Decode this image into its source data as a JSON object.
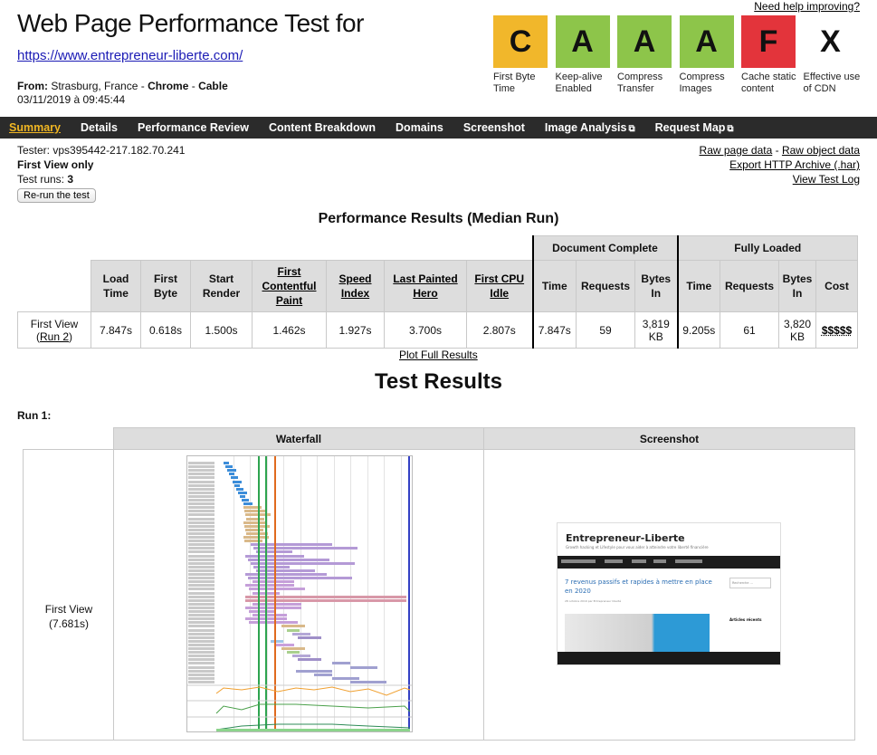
{
  "header": {
    "title": "Web Page Performance Test for",
    "url": "https://www.entrepreneur-liberte.com/",
    "from_label": "From:",
    "from_location": "Strasburg, France",
    "browser": "Chrome",
    "connection": "Cable",
    "sep": " - ",
    "datetime": "03/11/2019 à 09:45:44",
    "help_link": "Need help improving?"
  },
  "grades": [
    {
      "grade": "C",
      "label": "First Byte Time",
      "color": "#f1b72b"
    },
    {
      "grade": "A",
      "label": "Keep-alive Enabled",
      "color": "#8dc54a"
    },
    {
      "grade": "A",
      "label": "Compress Transfer",
      "color": "#8dc54a"
    },
    {
      "grade": "A",
      "label": "Compress Images",
      "color": "#8dc54a"
    },
    {
      "grade": "F",
      "label": "Cache static content",
      "color": "#e3343b"
    },
    {
      "grade": "X",
      "label": "Effective use of CDN",
      "color": "#ffffff"
    }
  ],
  "nav": {
    "summary": "Summary",
    "details": "Details",
    "performance_review": "Performance Review",
    "content_breakdown": "Content Breakdown",
    "domains": "Domains",
    "screenshot": "Screenshot",
    "image_analysis": "Image Analysis",
    "request_map": "Request Map"
  },
  "test_info": {
    "tester": "Tester: vps395442-217.182.70.241",
    "view": "First View only",
    "runs_label": "Test runs: ",
    "runs": "3",
    "rerun_button": "Re-run the test"
  },
  "links": {
    "raw_page": "Raw page data",
    "dash": " - ",
    "raw_object": "Raw object data",
    "export_har": "Export HTTP Archive (.har)",
    "view_log": "View Test Log"
  },
  "results": {
    "title": "Performance Results (Median Run)",
    "group_document": "Document Complete",
    "group_fully": "Fully Loaded",
    "headers": {
      "load_time": "Load Time",
      "first_byte": "First Byte",
      "start_render": "Start Render",
      "fcp": "First Contentful Paint",
      "speed_index": "Speed Index",
      "lph": "Last Painted Hero",
      "cpu_idle": "First CPU Idle",
      "time": "Time",
      "requests": "Requests",
      "bytes_in": "Bytes In",
      "cost": "Cost"
    },
    "row": {
      "label": "First View",
      "run_open": "(",
      "run_link": "Run 2",
      "run_close": ")",
      "load_time": "7.847s",
      "first_byte": "0.618s",
      "start_render": "1.500s",
      "fcp": "1.462s",
      "speed_index": "1.927s",
      "lph": "3.700s",
      "cpu_idle": "2.807s",
      "doc_time": "7.847s",
      "doc_requests": "59",
      "doc_bytes": "3,819 KB",
      "full_time": "9.205s",
      "full_requests": "61",
      "full_bytes": "3,820 KB",
      "cost": "$$$$$"
    },
    "plot_link": "Plot Full Results"
  },
  "test_results": {
    "title": "Test Results",
    "run_label": "Run 1:",
    "col_waterfall": "Waterfall",
    "col_screenshot": "Screenshot",
    "first_view": "First View",
    "first_view_time": "(7.681s)"
  },
  "screenshot_thumb": {
    "logo": "Entrepreneur-Liberte",
    "tagline": "Growth hacking et Lifestyle pour vous aider à atteindre votre liberté financière",
    "article_title": "7 revenus passifs et rapides à mettre en place en 2020",
    "article_meta": "28 octobre 2019 par Entrepreneur liberté",
    "search": "Recherche ...",
    "recent": "Articles récents"
  }
}
